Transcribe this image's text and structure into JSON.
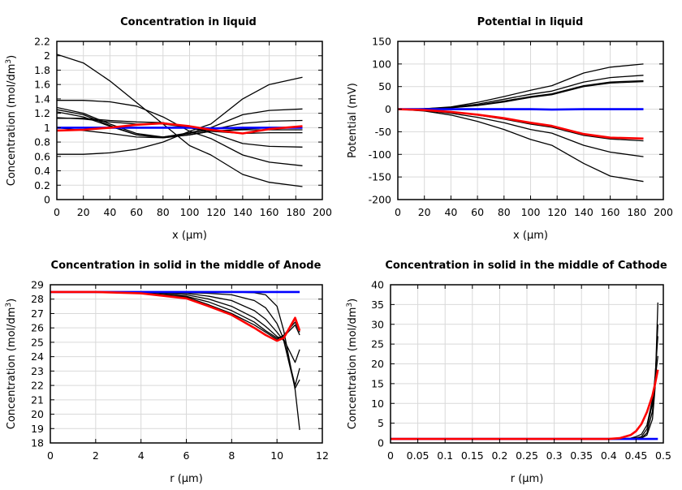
{
  "chart_data": [
    {
      "type": "line",
      "title": "Concentration in liquid",
      "xlabel": "x (µm)",
      "ylabel": "Concentration (mol/dm",
      "ylabel_sup": "3",
      "ylabel_end": ")",
      "xlim": [
        0,
        200
      ],
      "ylim": [
        0,
        2.2
      ],
      "xticks": [
        0,
        20,
        40,
        60,
        80,
        100,
        120,
        140,
        160,
        180,
        200
      ],
      "yticks": [
        0,
        0.2,
        0.4,
        0.6,
        0.8,
        1,
        1.2,
        1.4,
        1.6,
        1.8,
        2,
        2.2
      ],
      "grid": true,
      "x": [
        0,
        20,
        40,
        60,
        80,
        100,
        116,
        140,
        160,
        185
      ],
      "series": [
        {
          "color": "#000000",
          "values": [
            2.02,
            1.9,
            1.65,
            1.35,
            1.05,
            0.75,
            0.62,
            0.35,
            0.24,
            0.18
          ]
        },
        {
          "color": "#000000",
          "values": [
            0.63,
            0.63,
            0.65,
            0.7,
            0.8,
            0.95,
            1.05,
            1.4,
            1.6,
            1.7
          ]
        },
        {
          "color": "#000000",
          "values": [
            1.38,
            1.38,
            1.36,
            1.3,
            1.15,
            0.95,
            0.85,
            0.62,
            0.52,
            0.47
          ]
        },
        {
          "color": "#000000",
          "values": [
            1.28,
            1.2,
            1.05,
            0.92,
            0.87,
            0.93,
            1.0,
            1.18,
            1.24,
            1.26
          ]
        },
        {
          "color": "#000000",
          "values": [
            1.25,
            1.18,
            1.03,
            0.9,
            0.87,
            0.92,
            0.97,
            1.06,
            1.09,
            1.1
          ]
        },
        {
          "color": "#000000",
          "values": [
            1.22,
            1.15,
            1.02,
            0.9,
            0.86,
            0.9,
            0.95,
            0.98,
            1.0,
            1.0
          ]
        },
        {
          "color": "#000000",
          "values": [
            1.13,
            1.13,
            1.1,
            1.08,
            1.07,
            1.0,
            0.93,
            0.78,
            0.74,
            0.73
          ]
        },
        {
          "color": "#000000",
          "values": [
            1.14,
            1.12,
            1.08,
            1.05,
            1.05,
            1.0,
            0.95,
            0.92,
            0.93,
            0.93
          ]
        },
        {
          "color": "#000000",
          "values": [
            1.0,
            0.96,
            0.92,
            0.87,
            0.86,
            0.9,
            0.95,
            0.97,
            0.97,
            0.97
          ]
        },
        {
          "color": "#0000ff",
          "values": [
            1.0,
            1.0,
            1.0,
            1.0,
            1.0,
            1.0,
            0.99,
            1.0,
            1.0,
            1.0
          ]
        },
        {
          "color": "#ff0000",
          "values": [
            0.96,
            0.97,
            1.0,
            1.04,
            1.06,
            1.02,
            0.97,
            0.92,
            0.98,
            1.02
          ]
        }
      ]
    },
    {
      "type": "line",
      "title": "Potential in liquid",
      "xlabel": "x (µm)",
      "ylabel": "Potential (mV)",
      "xlim": [
        0,
        200
      ],
      "ylim": [
        -200,
        150
      ],
      "xticks": [
        0,
        20,
        40,
        60,
        80,
        100,
        120,
        140,
        160,
        180,
        200
      ],
      "yticks": [
        -200,
        -150,
        -100,
        -50,
        0,
        50,
        100,
        150
      ],
      "grid": true,
      "x": [
        0,
        20,
        40,
        60,
        80,
        100,
        116,
        140,
        160,
        185
      ],
      "series": [
        {
          "color": "#000000",
          "values": [
            0,
            1,
            5,
            15,
            28,
            42,
            52,
            80,
            93,
            100
          ]
        },
        {
          "color": "#000000",
          "values": [
            0,
            1,
            4,
            11,
            22,
            33,
            40,
            60,
            70,
            75
          ]
        },
        {
          "color": "#000000",
          "values": [
            0,
            1,
            3,
            9,
            18,
            28,
            34,
            52,
            60,
            63
          ]
        },
        {
          "color": "#000000",
          "values": [
            0,
            1,
            3,
            8,
            16,
            26,
            32,
            50,
            58,
            61
          ]
        },
        {
          "color": "#000000",
          "values": [
            0,
            -2,
            -6,
            -13,
            -22,
            -33,
            -40,
            -58,
            -66,
            -70
          ]
        },
        {
          "color": "#000000",
          "values": [
            0,
            -3,
            -9,
            -18,
            -30,
            -45,
            -53,
            -80,
            -95,
            -105
          ]
        },
        {
          "color": "#000000",
          "values": [
            0,
            -4,
            -13,
            -27,
            -45,
            -67,
            -80,
            -120,
            -148,
            -160
          ]
        },
        {
          "color": "#0000ff",
          "values": [
            0,
            0,
            0,
            0,
            0,
            0,
            -1,
            0,
            0,
            0
          ]
        },
        {
          "color": "#ff0000",
          "values": [
            0,
            -2,
            -6,
            -12,
            -20,
            -30,
            -37,
            -55,
            -63,
            -65
          ]
        }
      ]
    },
    {
      "type": "line",
      "title": "Concentration in solid in the middle of Anode",
      "xlabel": "r (µm)",
      "ylabel": "Concentration (mol/dm",
      "ylabel_sup": "3",
      "ylabel_end": ")",
      "xlim": [
        0,
        12
      ],
      "ylim": [
        18,
        29
      ],
      "xticks": [
        0,
        2,
        4,
        6,
        8,
        10,
        12
      ],
      "yticks": [
        18,
        19,
        20,
        21,
        22,
        23,
        24,
        25,
        26,
        27,
        28,
        29
      ],
      "grid": true,
      "x": [
        0,
        2,
        4,
        6,
        7,
        8,
        9,
        9.5,
        10,
        10.3,
        10.8,
        11
      ],
      "series": [
        {
          "color": "#000000",
          "values": [
            28.5,
            28.5,
            28.5,
            28.5,
            28.5,
            28.5,
            28.45,
            28.3,
            27.5,
            25.8,
            21.7,
            18.9
          ]
        },
        {
          "color": "#000000",
          "values": [
            28.5,
            28.5,
            28.5,
            28.45,
            28.4,
            28.3,
            27.9,
            27.4,
            26.3,
            25.2,
            22.0,
            23.2
          ]
        },
        {
          "color": "#000000",
          "values": [
            28.5,
            28.5,
            28.5,
            28.4,
            28.2,
            27.9,
            27.2,
            26.6,
            25.7,
            25.1,
            21.8,
            22.4
          ]
        },
        {
          "color": "#000000",
          "values": [
            28.5,
            28.5,
            28.5,
            28.3,
            28.0,
            27.5,
            26.7,
            26.1,
            25.4,
            25.2,
            23.6,
            24.5
          ]
        },
        {
          "color": "#000000",
          "values": [
            28.5,
            28.5,
            28.45,
            28.2,
            27.8,
            27.2,
            26.4,
            25.8,
            25.3,
            25.4,
            26.2,
            25.5
          ]
        },
        {
          "color": "#000000",
          "values": [
            28.5,
            28.5,
            28.42,
            28.15,
            27.6,
            27.0,
            26.2,
            25.7,
            25.2,
            25.5,
            26.4,
            25.7
          ]
        },
        {
          "color": "#0000ff",
          "values": [
            28.5,
            28.5,
            28.5,
            28.5,
            28.5,
            28.5,
            28.5,
            28.5,
            28.5,
            28.5,
            28.5,
            28.5
          ]
        },
        {
          "color": "#ff0000",
          "values": [
            28.5,
            28.5,
            28.4,
            28.05,
            27.5,
            26.9,
            26.0,
            25.5,
            25.1,
            25.3,
            26.7,
            25.8
          ]
        }
      ]
    },
    {
      "type": "line",
      "title": "Concentration in solid in the middle of Cathode",
      "xlabel": "r (µm)",
      "ylabel": "Concentration (mol/dm",
      "ylabel_sup": "3",
      "ylabel_end": ")",
      "xlim": [
        0,
        0.5
      ],
      "ylim": [
        0,
        40
      ],
      "xticks": [
        0,
        0.05,
        0.1,
        0.15,
        0.2,
        0.25,
        0.3,
        0.35,
        0.4,
        0.45,
        0.5
      ],
      "yticks": [
        0,
        5,
        10,
        15,
        20,
        25,
        30,
        35,
        40
      ],
      "grid": true,
      "x": [
        0,
        0.4,
        0.42,
        0.44,
        0.45,
        0.46,
        0.47,
        0.48,
        0.485,
        0.49
      ],
      "series": [
        {
          "color": "#000000",
          "values": [
            1,
            1,
            1,
            1,
            1.05,
            1.2,
            2,
            6,
            14,
            35.5
          ]
        },
        {
          "color": "#000000",
          "values": [
            1,
            1,
            1,
            1,
            1.1,
            1.3,
            2.5,
            8,
            16,
            30
          ]
        },
        {
          "color": "#000000",
          "values": [
            1,
            1,
            1,
            1.1,
            1.3,
            1.6,
            3.5,
            10,
            17,
            27
          ]
        },
        {
          "color": "#000000",
          "values": [
            1,
            1,
            1.05,
            1.2,
            1.6,
            2.2,
            4.5,
            11,
            16,
            22
          ]
        },
        {
          "color": "#0000ff",
          "values": [
            1,
            1,
            1,
            1,
            1,
            1,
            1,
            1,
            1,
            1
          ]
        },
        {
          "color": "#ff0000",
          "values": [
            1,
            1,
            1.2,
            2,
            3,
            4.8,
            7.8,
            12,
            15,
            18.5
          ]
        }
      ]
    }
  ]
}
